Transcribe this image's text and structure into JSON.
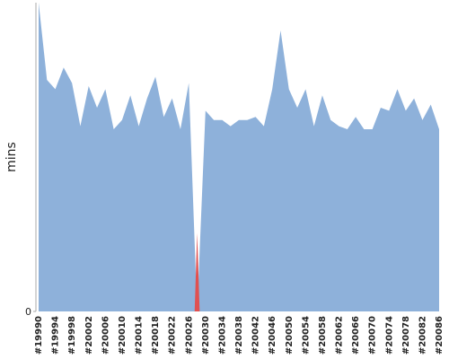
{
  "chart_data": {
    "type": "area",
    "y_label": "mins",
    "color": "#8eb1da",
    "zero_color": "#e05050",
    "categories": [
      "#19990",
      null,
      "#19994",
      null,
      "#19998",
      null,
      "#20002",
      null,
      "#20006",
      null,
      "#20010",
      null,
      "#20014",
      null,
      "#20018",
      null,
      "#20022",
      null,
      "#20026",
      null,
      "#20030",
      null,
      "#20034",
      null,
      "#20038",
      null,
      "#20042",
      null,
      "#20046",
      null,
      "#20050",
      null,
      "#20054",
      null,
      "#20058",
      null,
      "#20062",
      null,
      "#20066",
      null,
      "#20070",
      null,
      "#20074",
      null,
      "#20078",
      null,
      "#20082",
      null,
      "#20086"
    ],
    "values": [
      100,
      75,
      72,
      79,
      74,
      60,
      73,
      66,
      72,
      59,
      62,
      70,
      60,
      69,
      76,
      63,
      69,
      59,
      74,
      0,
      65,
      62,
      62,
      60,
      62,
      62,
      63,
      60,
      72,
      91,
      72,
      66,
      72,
      60,
      70,
      62,
      60,
      59,
      63,
      59,
      59,
      66,
      65,
      72,
      65,
      69,
      62,
      67,
      59
    ],
    "ylim": [
      0,
      100
    ],
    "yticks": [
      0
    ]
  }
}
